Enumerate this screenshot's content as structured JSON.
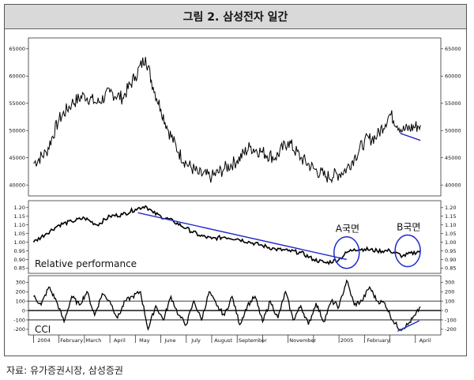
{
  "title": "그림 2. 삼성전자 일간",
  "source": "자료: 유가증권시장, 삼성증권",
  "chart_data": [
    {
      "type": "line",
      "panel": "price",
      "ylim": [
        38000,
        67000
      ],
      "yticks": [
        40000,
        45000,
        50000,
        55000,
        60000,
        65000
      ],
      "ytick_labels": [
        "40000",
        "45000",
        "50000",
        "55000",
        "60000",
        "65000"
      ],
      "x": [
        0,
        0.5,
        1,
        1.5,
        2,
        2.5,
        3,
        3.5,
        4,
        4.4,
        4.7,
        5,
        5.3,
        5.7,
        6,
        6.5,
        7,
        7.5,
        8,
        8.5,
        9,
        9.5,
        10,
        10.5,
        11,
        11.5,
        12,
        12.3,
        12.6,
        13,
        13.5,
        14,
        14.5,
        15.2
      ],
      "y": [
        44000,
        46000,
        52000,
        55000,
        56500,
        55000,
        57000,
        56000,
        60000,
        63500,
        58000,
        54000,
        50000,
        46000,
        44000,
        42000,
        41500,
        43000,
        44500,
        47000,
        46000,
        45000,
        48000,
        45000,
        43000,
        41500,
        42000,
        43000,
        45000,
        48000,
        49000,
        53000,
        50000,
        51000
      ],
      "trendline": {
        "x": [
          14.4,
          15.2
        ],
        "y": [
          49500,
          48200
        ]
      }
    },
    {
      "type": "line",
      "panel": "relative",
      "series_label": "Relative performance",
      "ylim": [
        0.82,
        1.24
      ],
      "yticks": [
        0.85,
        0.9,
        0.95,
        1.0,
        1.05,
        1.1,
        1.15,
        1.2
      ],
      "ytick_labels": [
        "0.85",
        "0.90",
        "0.95",
        "1.00",
        "1.05",
        "1.10",
        "1.15",
        "1.20"
      ],
      "x": [
        0,
        0.5,
        1,
        1.5,
        2,
        2.5,
        3,
        3.5,
        4,
        4.4,
        4.7,
        5,
        5.5,
        6,
        6.5,
        7,
        7.5,
        8,
        8.5,
        9,
        9.5,
        10,
        10.5,
        11,
        11.5,
        12,
        12.3,
        12.6,
        13,
        13.5,
        14,
        14.5,
        15.2
      ],
      "y": [
        1.0,
        1.05,
        1.1,
        1.12,
        1.14,
        1.1,
        1.15,
        1.16,
        1.19,
        1.21,
        1.17,
        1.15,
        1.12,
        1.08,
        1.04,
        1.02,
        1.03,
        1.02,
        1.0,
        0.98,
        0.96,
        0.95,
        0.94,
        0.9,
        0.88,
        0.9,
        0.94,
        0.96,
        0.96,
        0.95,
        0.95,
        0.92,
        0.95
      ],
      "trendline": {
        "x": [
          4.1,
          12.3
        ],
        "y": [
          1.17,
          0.9
        ]
      },
      "annotations": [
        {
          "label": "A국면",
          "x": 12.3,
          "y": 0.94
        },
        {
          "label": "B국면",
          "x": 14.7,
          "y": 0.95
        }
      ]
    },
    {
      "type": "line",
      "panel": "cci",
      "series_label": "CCI",
      "ylim": [
        -260,
        370
      ],
      "yticks": [
        -200,
        -100,
        0,
        100,
        200,
        300
      ],
      "ytick_labels": [
        "-200",
        "-100",
        "0",
        "100",
        "200",
        "300"
      ],
      "reference_lines": [
        -100,
        0,
        100
      ],
      "x": [
        0,
        0.3,
        0.6,
        0.9,
        1.2,
        1.5,
        1.8,
        2.1,
        2.4,
        2.7,
        3,
        3.3,
        3.6,
        3.9,
        4.2,
        4.5,
        4.8,
        5.1,
        5.4,
        5.7,
        6,
        6.3,
        6.6,
        6.9,
        7.2,
        7.5,
        7.8,
        8.1,
        8.4,
        8.7,
        9,
        9.3,
        9.6,
        9.9,
        10.2,
        10.5,
        10.8,
        11.1,
        11.4,
        11.7,
        12,
        12.3,
        12.6,
        12.9,
        13.2,
        13.5,
        13.8,
        14.1,
        14.4,
        14.7,
        15,
        15.2
      ],
      "y": [
        150,
        60,
        250,
        100,
        -120,
        150,
        60,
        200,
        -50,
        180,
        100,
        -80,
        100,
        150,
        200,
        -200,
        50,
        -100,
        150,
        -50,
        -150,
        100,
        -100,
        200,
        50,
        -50,
        150,
        -150,
        50,
        150,
        -120,
        100,
        -80,
        200,
        -100,
        50,
        -150,
        80,
        -120,
        100,
        40,
        320,
        60,
        100,
        250,
        100,
        80,
        -100,
        -200,
        -150,
        -50,
        40
      ],
      "trendline": {
        "x": [
          14.3,
          15.15
        ],
        "y": [
          -220,
          -110
        ]
      }
    }
  ],
  "x_axis": {
    "range": [
      -0.2,
      16
    ],
    "month_ticks": [
      0,
      1,
      2,
      3,
      4,
      5,
      6,
      7,
      8,
      9,
      10,
      11,
      12,
      13,
      14,
      15
    ],
    "labels": [
      {
        "text": "2004",
        "x": 0.15
      },
      {
        "text": "February",
        "x": 1.05
      },
      {
        "text": "March",
        "x": 2.05
      },
      {
        "text": "April",
        "x": 3.15
      },
      {
        "text": "May",
        "x": 4.15
      },
      {
        "text": "June",
        "x": 5.15
      },
      {
        "text": "July",
        "x": 6.2
      },
      {
        "text": "August",
        "x": 7.1
      },
      {
        "text": "September",
        "x": 8.05
      },
      {
        "text": "November",
        "x": 10.05
      },
      {
        "text": "2005",
        "x": 12.05
      },
      {
        "text": "February",
        "x": 13.1
      },
      {
        "text": "April",
        "x": 15.15
      }
    ]
  }
}
